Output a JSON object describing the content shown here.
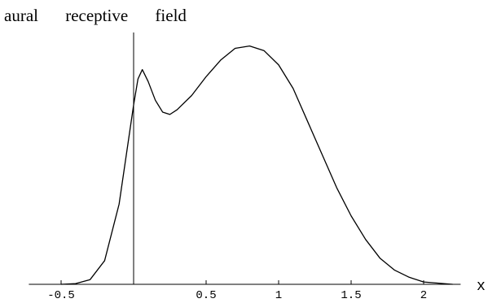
{
  "chart_data": {
    "type": "line",
    "title": "aural receptive field",
    "x_label": "x",
    "x": [
      -0.5,
      -0.4,
      -0.3,
      -0.2,
      -0.1,
      0,
      0.03,
      0.06,
      0.1,
      0.15,
      0.2,
      0.25,
      0.3,
      0.4,
      0.5,
      0.6,
      0.7,
      0.8,
      0.9,
      1.0,
      1.1,
      1.2,
      1.3,
      1.4,
      1.5,
      1.6,
      1.7,
      1.8,
      1.9,
      2.0,
      2.2
    ],
    "series": [
      {
        "color": "#000000",
        "values": [
          0,
          0.003,
          0.02,
          0.1,
          0.34,
          0.76,
          0.87,
          0.91,
          0.86,
          0.78,
          0.73,
          0.72,
          0.74,
          0.8,
          0.88,
          0.95,
          1.0,
          1.01,
          0.99,
          0.93,
          0.83,
          0.69,
          0.55,
          0.41,
          0.29,
          0.19,
          0.11,
          0.06,
          0.03,
          0.01,
          0
        ]
      }
    ],
    "xlim": [
      -0.7,
      2.3
    ],
    "ylim": [
      0,
      1.05
    ],
    "xticks": [
      -0.5,
      0.5,
      1,
      1.5,
      2
    ]
  }
}
